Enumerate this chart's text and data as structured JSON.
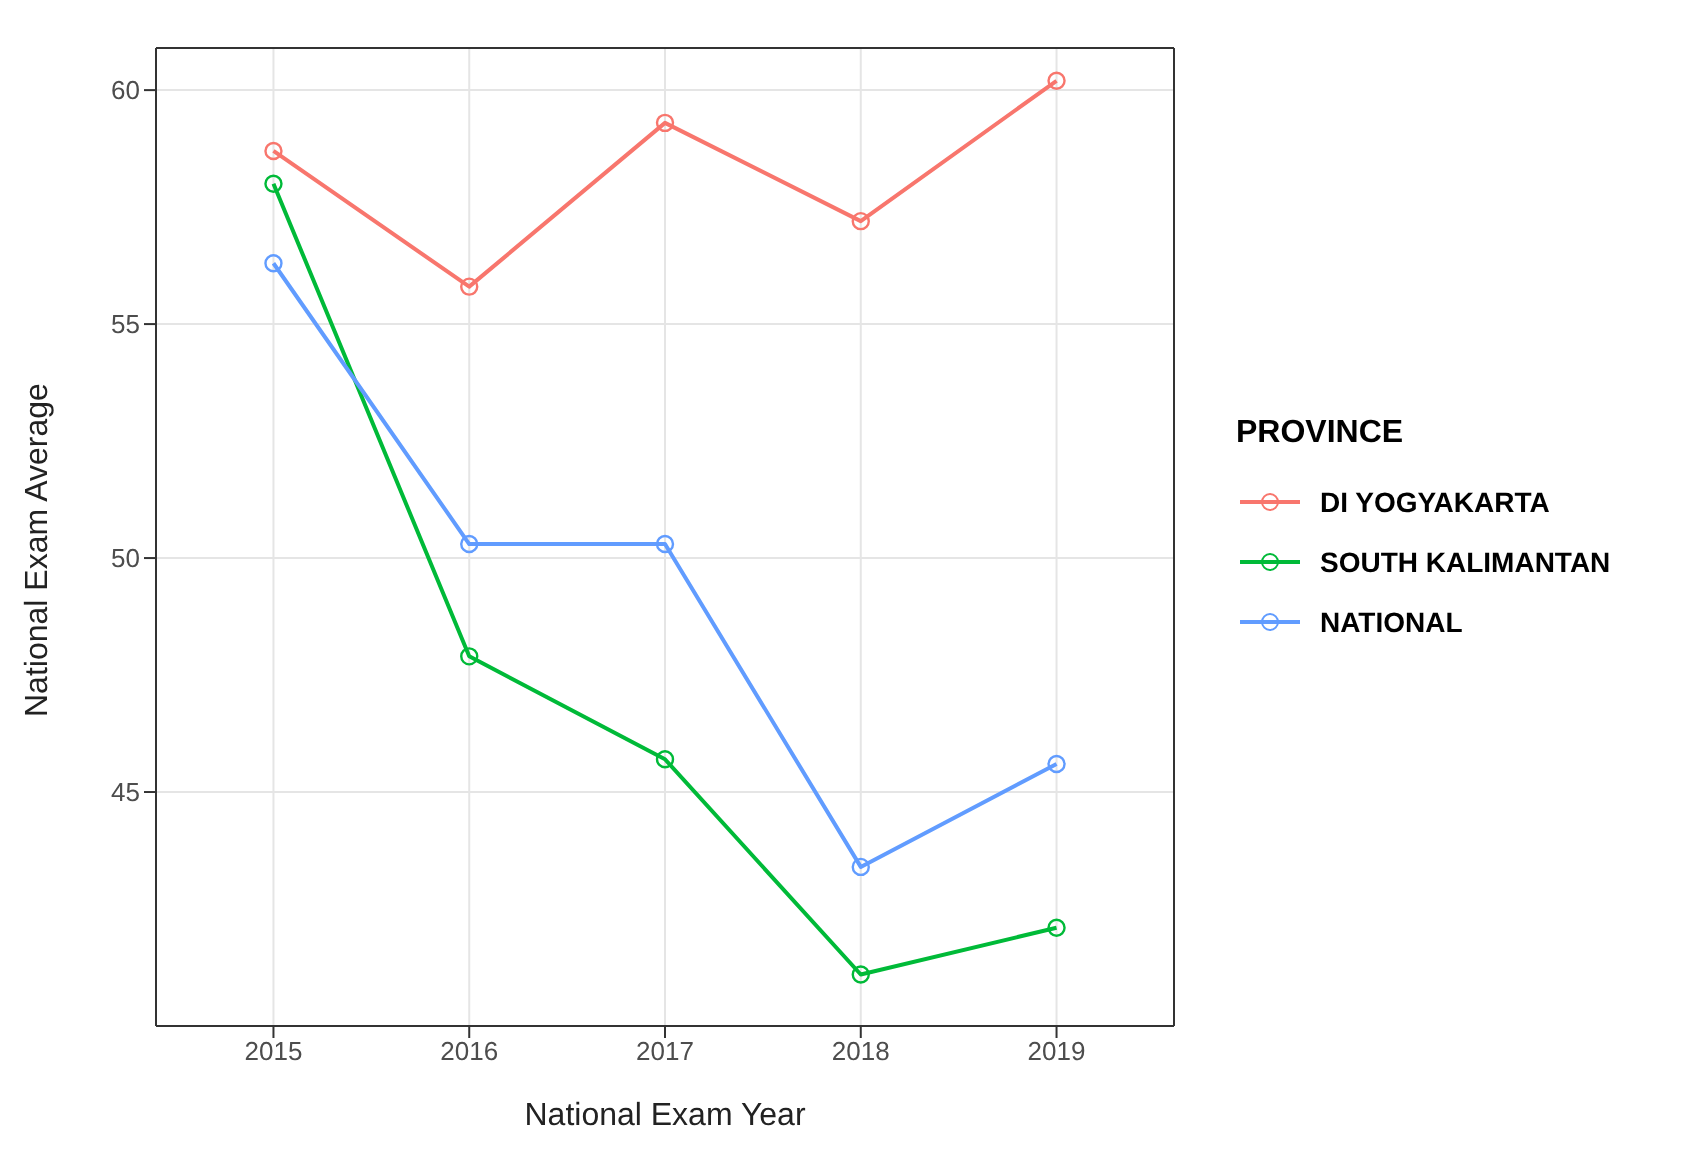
{
  "chart_data": {
    "type": "line",
    "xlabel": "National Exam Year",
    "ylabel": "National Exam Average",
    "legend_title": "PROVINCE",
    "x": [
      2015,
      2016,
      2017,
      2018,
      2019
    ],
    "series": [
      {
        "name": "DI YOGYAKARTA",
        "color": "#f8766d",
        "values": [
          58.7,
          55.8,
          59.3,
          57.2,
          60.2
        ]
      },
      {
        "name": "SOUTH KALIMANTAN",
        "color": "#00ba38",
        "values": [
          58.0,
          47.9,
          45.7,
          41.1,
          42.1
        ]
      },
      {
        "name": "NATIONAL",
        "color": "#619cff",
        "values": [
          56.3,
          50.3,
          50.3,
          43.4,
          45.6
        ]
      }
    ],
    "xlim": [
      2014.4,
      2019.6
    ],
    "xticks": [
      2015,
      2016,
      2017,
      2018,
      2019
    ],
    "ylim": [
      40,
      60.9
    ],
    "yticks": [
      45,
      50,
      55,
      60
    ],
    "grid": true,
    "legend": "right",
    "marker": "circle",
    "line_style": "solid"
  }
}
